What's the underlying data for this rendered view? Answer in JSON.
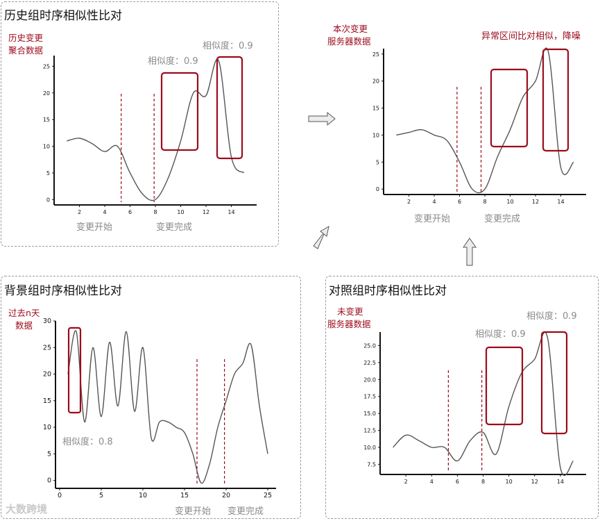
{
  "panels": {
    "history": {
      "title": "历史组时序相似性比对",
      "source_label_1": "历史变更",
      "source_label_2": "聚合数据",
      "similarity_1": "相似度：0.9",
      "similarity_2": "相似度：0.9",
      "change_start": "变更开始",
      "change_end": "变更完成"
    },
    "current": {
      "source_label_1": "本次变更",
      "source_label_2": "服务器数据",
      "anomaly_note": "异常区间比对相似，降噪",
      "change_start": "变更开始",
      "change_end": "变更完成"
    },
    "background": {
      "title": "背景组时序相似性比对",
      "source_label_1": "过去n天",
      "source_label_2": "数据",
      "similarity": "相似度：0.8",
      "change_start": "变更开始",
      "change_end": "变更完成"
    },
    "control": {
      "title": "对照组时序相似性比对",
      "source_label_1": "未变更",
      "source_label_2": "服务器数据",
      "similarity_1": "相似度：0.9",
      "similarity_2": "相似度：0.9"
    }
  },
  "watermark": "大数跨境",
  "colors": {
    "accent": "#9b0b1c",
    "line": "#555555",
    "text_grey": "#8a8a8a"
  },
  "chart_data": [
    {
      "id": "history",
      "type": "line",
      "x": [
        1,
        2,
        3,
        4,
        5,
        6,
        7,
        8,
        9,
        10,
        11,
        12,
        13,
        14,
        15
      ],
      "y": [
        11,
        11.5,
        10.5,
        9,
        10,
        5,
        1,
        0,
        4,
        11,
        20,
        19.5,
        26,
        8,
        5
      ],
      "xticks": [
        "2",
        "4",
        "6",
        "8",
        "10",
        "12",
        "14"
      ],
      "yticks": [
        "0",
        "5",
        "10",
        "15",
        "20",
        "25"
      ],
      "xlim": [
        0,
        16
      ],
      "ylim": [
        -1,
        27
      ],
      "change_lines": [
        5.3,
        7.9
      ]
    },
    {
      "id": "current",
      "type": "line",
      "x": [
        1,
        2,
        3,
        4,
        5,
        6,
        7,
        8,
        9,
        10,
        11,
        12,
        13,
        14,
        15
      ],
      "y": [
        10,
        10.5,
        11,
        10,
        9,
        5,
        0,
        0,
        6,
        11,
        17,
        20,
        25.5,
        4,
        5
      ],
      "xticks": [
        "2",
        "4",
        "6",
        "8",
        "10",
        "12",
        "14"
      ],
      "yticks": [
        "0",
        "5",
        "10",
        "15",
        "20",
        "25"
      ],
      "xlim": [
        0,
        16
      ],
      "ylim": [
        -1,
        26
      ],
      "change_lines": [
        5.8,
        7.7
      ]
    },
    {
      "id": "background",
      "type": "line",
      "x": [
        1,
        2,
        3,
        4,
        5,
        6,
        7,
        8,
        9,
        10,
        11,
        12,
        13,
        14,
        15,
        16,
        17,
        18,
        19,
        20,
        21,
        22,
        23,
        24,
        25
      ],
      "y": [
        20,
        28,
        11,
        25,
        12,
        26,
        14,
        28,
        13,
        25,
        8,
        11,
        11,
        10,
        9,
        5,
        -0.5,
        3,
        10,
        15,
        20,
        22,
        25.5,
        14,
        5
      ],
      "xticks": [
        "0",
        "5",
        "10",
        "15",
        "20",
        "25"
      ],
      "yticks": [
        "0",
        "5",
        "10",
        "15",
        "20",
        "25",
        "30"
      ],
      "xlim": [
        -0.5,
        26
      ],
      "ylim": [
        -1.5,
        30
      ],
      "change_lines": [
        16.5,
        19.8
      ]
    },
    {
      "id": "control",
      "type": "line",
      "x": [
        1,
        2,
        3,
        4,
        5,
        6,
        7,
        8,
        9,
        10,
        11,
        12,
        13,
        14,
        15
      ],
      "y": [
        10,
        11.8,
        11,
        10,
        10,
        8,
        11,
        12.2,
        9,
        16,
        21,
        23,
        26.2,
        7,
        8
      ],
      "xticks": [
        "2",
        "4",
        "6",
        "8",
        "10",
        "12",
        "14"
      ],
      "yticks": [
        "7.5",
        "10.0",
        "12.5",
        "15.0",
        "17.5",
        "20.0",
        "22.5",
        "25.0"
      ],
      "xlim": [
        0,
        16
      ],
      "ylim": [
        6,
        27
      ],
      "change_lines": [
        5.3,
        7.9
      ]
    }
  ]
}
